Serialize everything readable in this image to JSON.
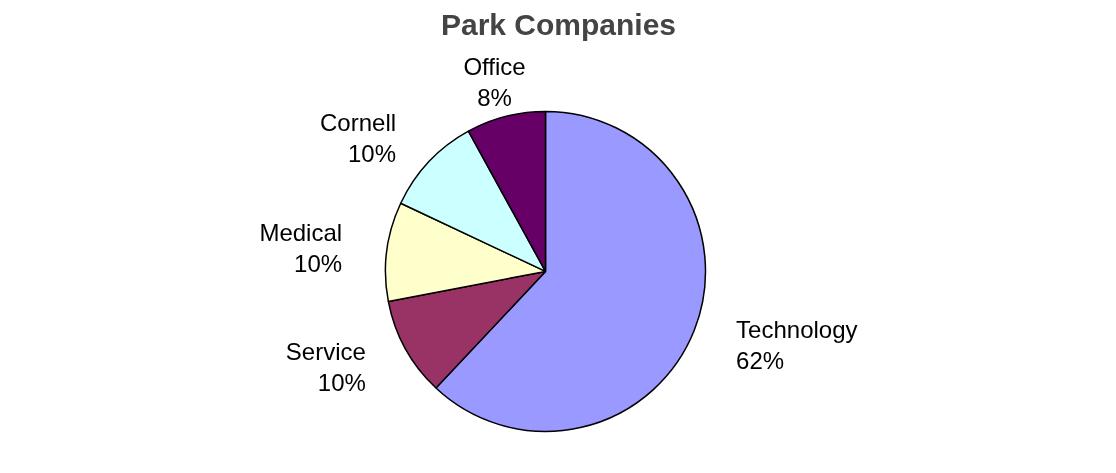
{
  "chart_data": {
    "type": "pie",
    "title": "Park Companies",
    "categories": [
      "Technology",
      "Service",
      "Medical",
      "Cornell",
      "Office"
    ],
    "values": [
      62,
      10,
      10,
      10,
      8
    ],
    "value_labels": [
      "62%",
      "10%",
      "10%",
      "10%",
      "8%"
    ],
    "colors": [
      "#9999ff",
      "#993366",
      "#ffffcc",
      "#ccffff",
      "#660066"
    ],
    "legend": false
  }
}
